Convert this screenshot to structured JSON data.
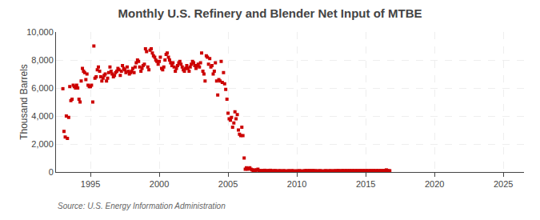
{
  "chart_data": {
    "type": "scatter",
    "title": "Monthly U.S. Refinery and Blender Net Input of MTBE",
    "y_label": "Thousand Barrels",
    "annotations": [
      "Source: U.S. Energy Information Administration"
    ],
    "color": "#cc0000",
    "marker": "square",
    "grid": true,
    "xlim": [
      1992.5,
      2026.5
    ],
    "ylim": [
      0,
      10000
    ],
    "xticks": [
      1995,
      2000,
      2005,
      2010,
      2015,
      2020,
      2025
    ],
    "yticks": [
      0,
      {
        "value": 2000,
        "label": "2,000"
      },
      {
        "value": 4000,
        "label": "4,000"
      },
      {
        "value": 6000,
        "label": "6,000"
      },
      {
        "value": 8000,
        "label": "8,000"
      },
      {
        "value": 10000,
        "label": "10,000"
      }
    ],
    "x": [
      1993.0,
      1993.08,
      1993.17,
      1993.25,
      1993.33,
      1993.42,
      1993.5,
      1993.58,
      1993.67,
      1993.75,
      1993.83,
      1993.92,
      1994.0,
      1994.08,
      1994.17,
      1994.25,
      1994.33,
      1994.42,
      1994.5,
      1994.58,
      1994.67,
      1994.75,
      1994.83,
      1994.92,
      1995.0,
      1995.08,
      1995.17,
      1995.25,
      1995.33,
      1995.42,
      1995.5,
      1995.58,
      1995.67,
      1995.75,
      1995.83,
      1995.92,
      1996.0,
      1996.08,
      1996.17,
      1996.25,
      1996.33,
      1996.42,
      1996.5,
      1996.58,
      1996.67,
      1996.75,
      1996.83,
      1996.92,
      1997.0,
      1997.08,
      1997.17,
      1997.25,
      1997.33,
      1997.42,
      1997.5,
      1997.58,
      1997.67,
      1997.75,
      1997.83,
      1997.92,
      1998.0,
      1998.08,
      1998.17,
      1998.25,
      1998.33,
      1998.42,
      1998.5,
      1998.58,
      1998.67,
      1998.75,
      1998.83,
      1998.92,
      1999.0,
      1999.08,
      1999.17,
      1999.25,
      1999.33,
      1999.42,
      1999.5,
      1999.58,
      1999.67,
      1999.75,
      1999.83,
      1999.92,
      2000.0,
      2000.08,
      2000.17,
      2000.25,
      2000.33,
      2000.42,
      2000.5,
      2000.58,
      2000.67,
      2000.75,
      2000.83,
      2000.92,
      2001.0,
      2001.08,
      2001.17,
      2001.25,
      2001.33,
      2001.42,
      2001.5,
      2001.58,
      2001.67,
      2001.75,
      2001.83,
      2001.92,
      2002.0,
      2002.08,
      2002.17,
      2002.25,
      2002.33,
      2002.42,
      2002.5,
      2002.58,
      2002.67,
      2002.75,
      2002.83,
      2002.92,
      2003.0,
      2003.08,
      2003.17,
      2003.25,
      2003.33,
      2003.42,
      2003.5,
      2003.58,
      2003.67,
      2003.75,
      2003.83,
      2003.92,
      2004.0,
      2004.08,
      2004.17,
      2004.25,
      2004.33,
      2004.42,
      2004.5,
      2004.58,
      2004.67,
      2004.75,
      2004.83,
      2004.92,
      2005.0,
      2005.08,
      2005.17,
      2005.25,
      2005.33,
      2005.42,
      2005.5,
      2005.58,
      2005.67,
      2005.75,
      2005.83,
      2005.92,
      2006.0,
      2006.08,
      2006.17,
      2006.25,
      2006.33,
      2006.42,
      2006.5,
      2006.58,
      2006.67,
      2006.75,
      2006.83,
      2006.92,
      2007.0,
      2007.08,
      2007.17,
      2007.25,
      2007.33,
      2007.42,
      2007.5,
      2007.58,
      2007.67,
      2007.75,
      2007.83,
      2007.92,
      2008.0,
      2008.08,
      2008.17,
      2008.25,
      2008.33,
      2008.42,
      2008.5,
      2008.58,
      2008.67,
      2008.75,
      2008.83,
      2008.92,
      2009.0,
      2009.08,
      2009.17,
      2009.25,
      2009.33,
      2009.42,
      2009.5,
      2009.58,
      2009.67,
      2009.75,
      2009.83,
      2009.92,
      2010.0,
      2010.08,
      2010.17,
      2010.25,
      2010.33,
      2010.42,
      2010.5,
      2010.58,
      2010.67,
      2010.75,
      2010.83,
      2010.92,
      2011.0,
      2011.08,
      2011.17,
      2011.25,
      2011.33,
      2011.42,
      2011.5,
      2011.58,
      2011.67,
      2011.75,
      2011.83,
      2011.92,
      2012.0,
      2012.08,
      2012.17,
      2012.25,
      2012.33,
      2012.42,
      2012.5,
      2012.58,
      2012.67,
      2012.75,
      2012.83,
      2012.92,
      2013.0,
      2013.08,
      2013.17,
      2013.25,
      2013.33,
      2013.42,
      2013.5,
      2013.58,
      2013.67,
      2013.75,
      2013.83,
      2013.92,
      2014.0,
      2014.08,
      2014.17,
      2014.25,
      2014.33,
      2014.42,
      2014.5,
      2014.58,
      2014.67,
      2014.75,
      2014.83,
      2014.92,
      2015.0,
      2015.08,
      2015.17,
      2015.25,
      2015.33,
      2015.42,
      2015.5,
      2015.58,
      2015.67,
      2015.75,
      2015.83,
      2015.92,
      2016.0,
      2016.08,
      2016.17,
      2016.25,
      2016.33,
      2016.42,
      2016.5,
      2016.58,
      2016.67,
      2016.75
    ],
    "values": [
      5950,
      2900,
      2500,
      4000,
      2400,
      3900,
      6100,
      5100,
      5200,
      6200,
      6100,
      6000,
      6200,
      6000,
      5200,
      5000,
      6500,
      7400,
      7200,
      7100,
      6600,
      7000,
      6200,
      6100,
      6100,
      6200,
      5000,
      9000,
      6700,
      6800,
      7300,
      7500,
      7200,
      6800,
      6500,
      6700,
      6900,
      7000,
      6500,
      6700,
      7100,
      7500,
      7200,
      7000,
      6800,
      6900,
      7100,
      7200,
      7400,
      7300,
      6900,
      7200,
      7600,
      7400,
      7300,
      7100,
      7500,
      7200,
      7000,
      7100,
      7200,
      7400,
      7100,
      7500,
      7800,
      8000,
      7900,
      7500,
      7200,
      7400,
      7600,
      7700,
      8800,
      8600,
      7500,
      7300,
      8700,
      8800,
      8500,
      8300,
      8200,
      8000,
      7900,
      7700,
      7900,
      8200,
      7400,
      7300,
      7500,
      8000,
      8400,
      8500,
      8200,
      8000,
      7800,
      7600,
      7800,
      7500,
      7200,
      7400,
      7600,
      7800,
      7900,
      7700,
      7500,
      7300,
      7200,
      7400,
      7600,
      7400,
      7200,
      7500,
      7700,
      7900,
      7800,
      7600,
      7400,
      7600,
      7700,
      7500,
      7800,
      8500,
      7200,
      7000,
      6500,
      8300,
      8200,
      7700,
      8100,
      7500,
      7600,
      7000,
      7200,
      7800,
      6500,
      5500,
      6600,
      6500,
      7900,
      6400,
      7100,
      6300,
      5900,
      5200,
      4200,
      3800,
      3700,
      3900,
      3200,
      3500,
      4300,
      3800,
      4100,
      3000,
      2700,
      2600,
      3200,
      2600,
      1000,
      200,
      300,
      200,
      250,
      300,
      200,
      150,
      100,
      150,
      100,
      150,
      200,
      100,
      80,
      100,
      80,
      100,
      120,
      90,
      80,
      100,
      100,
      120,
      80,
      90,
      70,
      100,
      80,
      70,
      80,
      90,
      80,
      70,
      80,
      90,
      70,
      60,
      80,
      90,
      70,
      80,
      90,
      80,
      60,
      70,
      80,
      70,
      90,
      80,
      70,
      60,
      80,
      90,
      100,
      80,
      90,
      100,
      80,
      90,
      100,
      80,
      90,
      80,
      70,
      80,
      90,
      80,
      70,
      60,
      80,
      90,
      80,
      70,
      80,
      90,
      80,
      70,
      80,
      90,
      80,
      90,
      100,
      80,
      90,
      80,
      100,
      90,
      80,
      100,
      90,
      80,
      100,
      90,
      80,
      100,
      90,
      80,
      100,
      90,
      80,
      100,
      90,
      80,
      100,
      90,
      80,
      100,
      90,
      80,
      100,
      90,
      80,
      100,
      90,
      80,
      100,
      90,
      80,
      100,
      90,
      80,
      100,
      90,
      150,
      100,
      80,
      90
    ]
  }
}
